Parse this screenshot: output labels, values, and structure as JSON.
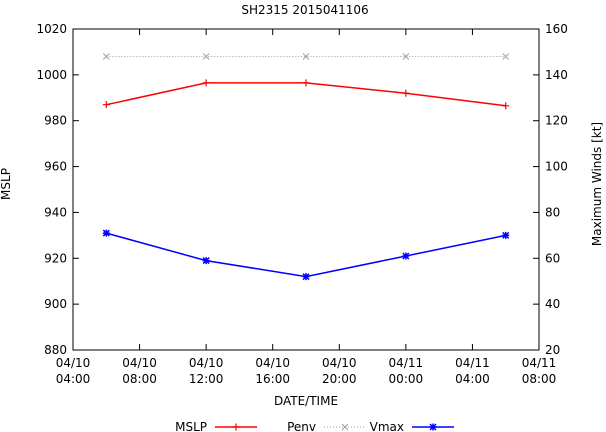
{
  "chart_data": {
    "type": "line",
    "title": "SH2315 2015041106",
    "xlabel": "DATE/TIME",
    "ylabel": "MSLP",
    "y2label": "Maximum Winds [kt]",
    "x_hours": [
      0,
      4,
      8,
      12,
      16,
      20,
      24,
      28
    ],
    "x_tick_labels": [
      [
        "04/10",
        "04:00"
      ],
      [
        "04/10",
        "08:00"
      ],
      [
        "04/10",
        "12:00"
      ],
      [
        "04/10",
        "16:00"
      ],
      [
        "04/10",
        "20:00"
      ],
      [
        "04/11",
        "00:00"
      ],
      [
        "04/11",
        "04:00"
      ],
      [
        "04/11",
        "08:00"
      ]
    ],
    "xlim": [
      0,
      28
    ],
    "ylim": [
      880,
      1020
    ],
    "y_ticks": [
      880,
      900,
      920,
      940,
      960,
      980,
      1000,
      1020
    ],
    "y2lim": [
      20,
      160
    ],
    "y2_ticks": [
      20,
      40,
      60,
      80,
      100,
      120,
      140,
      160
    ],
    "series": [
      {
        "name": "MSLP",
        "axis": "y",
        "color": "#ff0000",
        "marker": "plus",
        "dashed": false,
        "x": [
          2,
          8,
          14,
          20,
          26
        ],
        "values": [
          987,
          996.5,
          996.5,
          992,
          986.5
        ]
      },
      {
        "name": "Penv",
        "axis": "y",
        "color": "#a0a0a0",
        "marker": "cross",
        "dashed": true,
        "x": [
          2,
          8,
          14,
          20,
          26
        ],
        "values": [
          1008,
          1008,
          1008,
          1008,
          1008
        ]
      },
      {
        "name": "Vmax",
        "axis": "y2",
        "color": "#0000ff",
        "marker": "star",
        "dashed": false,
        "x": [
          2,
          8,
          14,
          20,
          26
        ],
        "values": [
          71,
          59,
          52,
          61,
          70
        ]
      }
    ],
    "legend": {
      "position": "bottom",
      "labels": [
        "MSLP",
        "Penv",
        "Vmax"
      ]
    }
  }
}
